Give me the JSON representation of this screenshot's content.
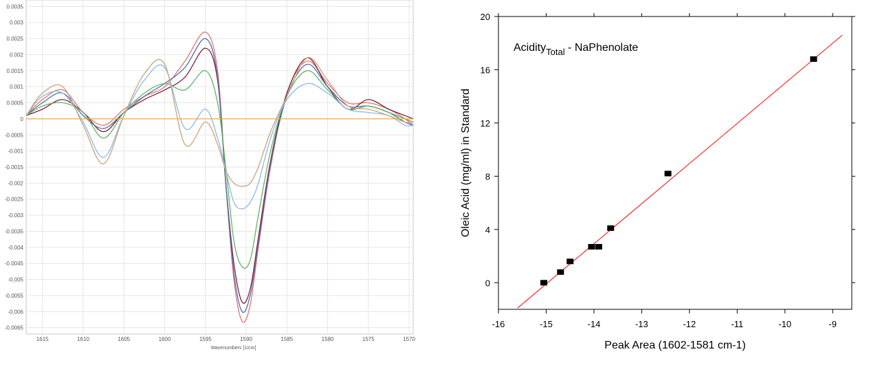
{
  "chart_data": [
    {
      "type": "line",
      "title": "",
      "xlabel": "Wavenumbers [1/cm]",
      "ylabel": "",
      "xlim": [
        1617,
        1569.5
      ],
      "x_reversed": true,
      "ylim": [
        -0.0067,
        0.0037
      ],
      "grid": true,
      "legend": "none",
      "x_ticks": [
        "1615",
        "1610",
        "1605",
        "1600",
        "1595",
        "1590",
        "1585",
        "1580",
        "1575",
        "1570"
      ],
      "y_ticks": [
        "0.0035",
        "0.003",
        "0.0025",
        "0.002",
        "0.0015",
        "0.001",
        "0.0005",
        "0",
        "-0.0005",
        "-0.001",
        "-0.0015",
        "-0.002",
        "-0.0025",
        "-0.003",
        "-0.0035",
        "-0.004",
        "-0.0045",
        "-0.005",
        "-0.0055",
        "-0.006",
        "-0.0065"
      ],
      "x": [
        1617,
        1615,
        1612.5,
        1610,
        1607.5,
        1605,
        1602.5,
        1600,
        1597.5,
        1595,
        1593.5,
        1592.5,
        1591.5,
        1590.5,
        1589.5,
        1588.5,
        1587,
        1585,
        1582.5,
        1580,
        1577.5,
        1575,
        1572.5,
        1570.5,
        1569.5
      ],
      "series": [
        {
          "color": "#e57373",
          "values": [
            0.0001,
            0.0006,
            0.0009,
            0.0002,
            -0.0002,
            0.0003,
            0.0007,
            0.001,
            0.0018,
            0.0027,
            0.0015,
            -0.002,
            -0.005,
            -0.0063,
            -0.0058,
            -0.004,
            -0.0015,
            0.0008,
            0.0018,
            0.0011,
            0.0005,
            0.0005,
            0.0003,
            0.0,
            -0.0002
          ]
        },
        {
          "color": "#7c1f3a",
          "values": [
            0.0001,
            0.0003,
            0.0006,
            0.0002,
            -0.0004,
            0.0002,
            0.0006,
            0.0009,
            0.0013,
            0.0022,
            0.0012,
            -0.002,
            -0.0045,
            -0.0057,
            -0.0053,
            -0.0037,
            -0.0013,
            0.0008,
            0.0019,
            0.001,
            0.0003,
            0.0006,
            0.0003,
            0.0001,
            0.0
          ]
        },
        {
          "color": "#4c6fa8",
          "values": [
            0.0001,
            0.0005,
            0.0008,
            0.0001,
            -0.0003,
            0.0002,
            0.0007,
            0.0011,
            0.0016,
            0.0025,
            0.0013,
            -0.002,
            -0.0048,
            -0.006,
            -0.0055,
            -0.0039,
            -0.0014,
            0.0007,
            0.0017,
            0.001,
            0.0004,
            0.0004,
            0.0002,
            -0.0001,
            -0.0002
          ]
        },
        {
          "color": "#5fb55f",
          "values": [
            0.0001,
            0.0004,
            0.0005,
            0.0002,
            -0.0006,
            0.0002,
            0.0008,
            0.0011,
            0.0009,
            0.0015,
            0.0005,
            -0.0015,
            -0.0038,
            -0.0046,
            -0.0044,
            -0.003,
            -0.001,
            0.0007,
            0.0015,
            0.0009,
            0.0003,
            0.0004,
            0.0002,
            0.0,
            -0.0001
          ]
        },
        {
          "color": "#8fb7e4",
          "values": [
            0.0001,
            0.0007,
            0.0008,
            -0.0001,
            -0.0012,
            0.0001,
            0.0012,
            0.0016,
            -0.0003,
            0.0003,
            -0.0006,
            -0.0016,
            -0.0026,
            -0.0028,
            -0.0026,
            -0.002,
            -0.0006,
            0.0006,
            0.0011,
            0.0008,
            0.0003,
            0.0002,
            0.0001,
            -0.0002,
            -0.0002
          ]
        },
        {
          "color": "#c9a27a",
          "values": [
            0.0001,
            0.0008,
            0.001,
            -0.0002,
            -0.0014,
            0.0001,
            0.0014,
            0.0017,
            -0.0008,
            -0.0001,
            -0.0008,
            -0.0016,
            -0.002,
            -0.0021,
            -0.002,
            -0.0015,
            -0.0004,
            0.0007,
            0.0019,
            0.0012,
            0.0004,
            0.0003,
            0.0001,
            -0.0001,
            -0.0001
          ]
        },
        {
          "color": "#f4a742",
          "values": [
            0.0,
            0.0,
            0.0,
            0.0,
            0.0,
            0.0,
            0.0,
            0.0,
            0.0,
            0.0,
            0.0,
            0.0,
            0.0,
            0.0,
            0.0,
            0.0,
            0.0,
            0.0,
            0.0,
            0.0,
            0.0,
            0.0,
            0.0,
            0.0,
            0.0
          ]
        }
      ]
    },
    {
      "type": "scatter",
      "title": "Acidity",
      "title_sub": "Total",
      "title_rest": " - NaPhenolate",
      "xlabel": "Peak Area (1602-1581 cm-1)",
      "ylabel": "Oleic Acid (mg/ml) in Standard",
      "xlim": [
        -16,
        -8.6
      ],
      "ylim": [
        -2,
        20
      ],
      "x_ticks": [
        "-16",
        "-15",
        "-14",
        "-13",
        "-12",
        "-11",
        "-10",
        "-9"
      ],
      "y_ticks": [
        "0",
        "4",
        "8",
        "12",
        "16",
        "20"
      ],
      "points": [
        {
          "x": -15.05,
          "y": 0.0
        },
        {
          "x": -14.7,
          "y": 0.8
        },
        {
          "x": -14.5,
          "y": 1.6
        },
        {
          "x": -14.05,
          "y": 2.7
        },
        {
          "x": -13.9,
          "y": 2.7
        },
        {
          "x": -13.65,
          "y": 4.1
        },
        {
          "x": -12.45,
          "y": 8.2
        },
        {
          "x": -9.4,
          "y": 16.8
        }
      ],
      "fit_line": {
        "x": [
          -15.6,
          -8.8
        ],
        "y": [
          -1.9,
          18.6
        ],
        "color": "#ff0000"
      }
    }
  ]
}
